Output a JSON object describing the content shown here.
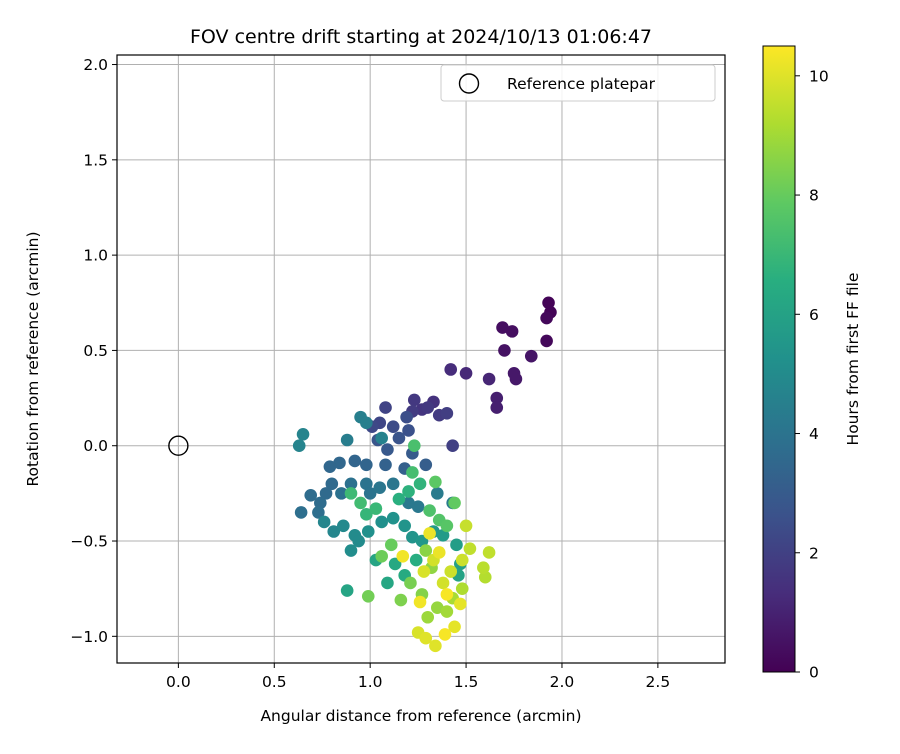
{
  "chart_data": {
    "type": "scatter",
    "title": "FOV centre drift starting at 2024/10/13 01:06:47",
    "xlabel": "Angular distance from reference (arcmin)",
    "ylabel": "Rotation from reference (arcmin)",
    "xlim": [
      -0.32,
      2.85
    ],
    "ylim": [
      -1.14,
      2.05
    ],
    "xticks": [
      0.0,
      0.5,
      1.0,
      1.5,
      2.0,
      2.5
    ],
    "xtick_labels": [
      "0.0",
      "0.5",
      "1.0",
      "1.5",
      "2.0",
      "2.5"
    ],
    "yticks": [
      -1.0,
      -0.5,
      0.0,
      0.5,
      1.0,
      1.5,
      2.0
    ],
    "ytick_labels": [
      "−1.0",
      "−0.5",
      "0.0",
      "0.5",
      "1.0",
      "1.5",
      "2.0"
    ],
    "grid": true,
    "legend": {
      "placement": "top-right",
      "entries": [
        "Reference platepar"
      ]
    },
    "reference_point": {
      "x": 0.0,
      "y": 0.0
    },
    "colorbar": {
      "label": "Hours from first FF file",
      "colormap": "viridis",
      "range": [
        0,
        10.5
      ],
      "ticks": [
        0,
        2,
        4,
        6,
        8,
        10
      ],
      "tick_labels": [
        "0",
        "2",
        "4",
        "6",
        "8",
        "10"
      ]
    },
    "points": [
      {
        "x": 1.93,
        "y": 0.75,
        "h": 0.1
      },
      {
        "x": 1.94,
        "y": 0.7,
        "h": 0.1
      },
      {
        "x": 1.92,
        "y": 0.67,
        "h": 0.2
      },
      {
        "x": 1.92,
        "y": 0.55,
        "h": 0.2
      },
      {
        "x": 1.69,
        "y": 0.62,
        "h": 0.4
      },
      {
        "x": 1.74,
        "y": 0.6,
        "h": 0.4
      },
      {
        "x": 1.7,
        "y": 0.5,
        "h": 0.5
      },
      {
        "x": 1.84,
        "y": 0.47,
        "h": 0.6
      },
      {
        "x": 1.75,
        "y": 0.38,
        "h": 0.7
      },
      {
        "x": 1.76,
        "y": 0.35,
        "h": 0.7
      },
      {
        "x": 1.66,
        "y": 0.25,
        "h": 0.9
      },
      {
        "x": 1.66,
        "y": 0.2,
        "h": 0.9
      },
      {
        "x": 1.62,
        "y": 0.35,
        "h": 1.1
      },
      {
        "x": 1.5,
        "y": 0.38,
        "h": 1.2
      },
      {
        "x": 1.42,
        "y": 0.4,
        "h": 1.3
      },
      {
        "x": 1.33,
        "y": 0.23,
        "h": 1.5
      },
      {
        "x": 1.27,
        "y": 0.19,
        "h": 1.6
      },
      {
        "x": 1.23,
        "y": 0.24,
        "h": 1.7
      },
      {
        "x": 1.3,
        "y": 0.2,
        "h": 1.7
      },
      {
        "x": 1.22,
        "y": 0.18,
        "h": 1.8
      },
      {
        "x": 1.36,
        "y": 0.16,
        "h": 1.8
      },
      {
        "x": 1.4,
        "y": 0.17,
        "h": 1.9
      },
      {
        "x": 1.43,
        "y": 0.0,
        "h": 2.0
      },
      {
        "x": 1.08,
        "y": 0.2,
        "h": 2.1
      },
      {
        "x": 1.05,
        "y": 0.12,
        "h": 2.2
      },
      {
        "x": 1.01,
        "y": 0.1,
        "h": 2.3
      },
      {
        "x": 1.12,
        "y": 0.1,
        "h": 2.4
      },
      {
        "x": 1.19,
        "y": 0.15,
        "h": 2.5
      },
      {
        "x": 1.2,
        "y": 0.08,
        "h": 2.6
      },
      {
        "x": 1.15,
        "y": 0.04,
        "h": 2.7
      },
      {
        "x": 1.04,
        "y": 0.03,
        "h": 2.8
      },
      {
        "x": 1.09,
        "y": -0.02,
        "h": 2.9
      },
      {
        "x": 1.22,
        "y": -0.04,
        "h": 3.0
      },
      {
        "x": 1.29,
        "y": -0.1,
        "h": 3.1
      },
      {
        "x": 1.18,
        "y": -0.12,
        "h": 3.2
      },
      {
        "x": 1.08,
        "y": -0.1,
        "h": 3.3
      },
      {
        "x": 0.98,
        "y": -0.1,
        "h": 3.4
      },
      {
        "x": 0.92,
        "y": -0.08,
        "h": 3.4
      },
      {
        "x": 0.84,
        "y": -0.09,
        "h": 3.5
      },
      {
        "x": 0.79,
        "y": -0.11,
        "h": 3.5
      },
      {
        "x": 0.8,
        "y": -0.2,
        "h": 3.6
      },
      {
        "x": 0.77,
        "y": -0.25,
        "h": 3.6
      },
      {
        "x": 0.74,
        "y": -0.3,
        "h": 3.7
      },
      {
        "x": 0.69,
        "y": -0.26,
        "h": 3.7
      },
      {
        "x": 0.73,
        "y": -0.35,
        "h": 3.8
      },
      {
        "x": 0.64,
        "y": -0.35,
        "h": 3.8
      },
      {
        "x": 0.85,
        "y": -0.25,
        "h": 3.9
      },
      {
        "x": 0.9,
        "y": -0.2,
        "h": 3.9
      },
      {
        "x": 0.98,
        "y": -0.2,
        "h": 4.0
      },
      {
        "x": 1.0,
        "y": -0.25,
        "h": 4.0
      },
      {
        "x": 1.05,
        "y": -0.22,
        "h": 4.1
      },
      {
        "x": 1.12,
        "y": -0.2,
        "h": 4.1
      },
      {
        "x": 1.2,
        "y": -0.3,
        "h": 4.2
      },
      {
        "x": 1.25,
        "y": -0.32,
        "h": 4.2
      },
      {
        "x": 1.35,
        "y": -0.25,
        "h": 4.3
      },
      {
        "x": 1.43,
        "y": -0.3,
        "h": 4.3
      },
      {
        "x": 0.88,
        "y": 0.03,
        "h": 4.4
      },
      {
        "x": 0.95,
        "y": 0.15,
        "h": 4.5
      },
      {
        "x": 0.98,
        "y": 0.12,
        "h": 4.5
      },
      {
        "x": 1.06,
        "y": 0.04,
        "h": 4.6
      },
      {
        "x": 0.65,
        "y": 0.06,
        "h": 4.7
      },
      {
        "x": 0.63,
        "y": 0.0,
        "h": 4.7
      },
      {
        "x": 0.76,
        "y": -0.4,
        "h": 4.8
      },
      {
        "x": 0.81,
        "y": -0.45,
        "h": 4.8
      },
      {
        "x": 0.86,
        "y": -0.42,
        "h": 4.9
      },
      {
        "x": 0.92,
        "y": -0.47,
        "h": 5.0
      },
      {
        "x": 0.94,
        "y": -0.5,
        "h": 5.0
      },
      {
        "x": 0.9,
        "y": -0.55,
        "h": 5.1
      },
      {
        "x": 0.99,
        "y": -0.45,
        "h": 5.2
      },
      {
        "x": 1.06,
        "y": -0.4,
        "h": 5.2
      },
      {
        "x": 1.12,
        "y": -0.38,
        "h": 5.3
      },
      {
        "x": 1.18,
        "y": -0.42,
        "h": 5.4
      },
      {
        "x": 1.22,
        "y": -0.48,
        "h": 5.4
      },
      {
        "x": 1.27,
        "y": -0.5,
        "h": 5.5
      },
      {
        "x": 1.33,
        "y": -0.45,
        "h": 5.6
      },
      {
        "x": 1.38,
        "y": -0.47,
        "h": 5.7
      },
      {
        "x": 1.45,
        "y": -0.52,
        "h": 5.8
      },
      {
        "x": 1.47,
        "y": -0.62,
        "h": 5.9
      },
      {
        "x": 1.46,
        "y": -0.68,
        "h": 6.0
      },
      {
        "x": 0.88,
        "y": -0.76,
        "h": 6.1
      },
      {
        "x": 1.03,
        "y": -0.6,
        "h": 6.1
      },
      {
        "x": 1.09,
        "y": -0.72,
        "h": 6.2
      },
      {
        "x": 1.13,
        "y": -0.62,
        "h": 6.3
      },
      {
        "x": 1.18,
        "y": -0.68,
        "h": 6.4
      },
      {
        "x": 1.24,
        "y": -0.6,
        "h": 6.5
      },
      {
        "x": 1.15,
        "y": -0.28,
        "h": 6.6
      },
      {
        "x": 1.2,
        "y": -0.24,
        "h": 6.7
      },
      {
        "x": 1.26,
        "y": -0.2,
        "h": 6.8
      },
      {
        "x": 0.98,
        "y": -0.36,
        "h": 6.9
      },
      {
        "x": 1.03,
        "y": -0.33,
        "h": 7.0
      },
      {
        "x": 0.9,
        "y": -0.25,
        "h": 7.1
      },
      {
        "x": 0.95,
        "y": -0.3,
        "h": 7.2
      },
      {
        "x": 1.22,
        "y": -0.14,
        "h": 7.3
      },
      {
        "x": 1.23,
        "y": 0.0,
        "h": 7.4
      },
      {
        "x": 1.31,
        "y": -0.34,
        "h": 7.5
      },
      {
        "x": 1.36,
        "y": -0.39,
        "h": 7.6
      },
      {
        "x": 1.4,
        "y": -0.42,
        "h": 7.7
      },
      {
        "x": 1.34,
        "y": -0.19,
        "h": 7.8
      },
      {
        "x": 1.44,
        "y": -0.3,
        "h": 7.9
      },
      {
        "x": 1.11,
        "y": -0.52,
        "h": 8.0
      },
      {
        "x": 1.06,
        "y": -0.58,
        "h": 8.1
      },
      {
        "x": 0.99,
        "y": -0.79,
        "h": 8.2
      },
      {
        "x": 1.21,
        "y": -0.72,
        "h": 8.3
      },
      {
        "x": 1.16,
        "y": -0.81,
        "h": 8.4
      },
      {
        "x": 1.27,
        "y": -0.78,
        "h": 8.5
      },
      {
        "x": 1.29,
        "y": -0.55,
        "h": 8.6
      },
      {
        "x": 1.32,
        "y": -0.64,
        "h": 8.7
      },
      {
        "x": 1.35,
        "y": -0.85,
        "h": 8.8
      },
      {
        "x": 1.3,
        "y": -0.9,
        "h": 8.9
      },
      {
        "x": 1.4,
        "y": -0.87,
        "h": 9.0
      },
      {
        "x": 1.43,
        "y": -0.8,
        "h": 9.1
      },
      {
        "x": 1.48,
        "y": -0.75,
        "h": 9.2
      },
      {
        "x": 1.6,
        "y": -0.69,
        "h": 9.3
      },
      {
        "x": 1.59,
        "y": -0.64,
        "h": 9.4
      },
      {
        "x": 1.62,
        "y": -0.56,
        "h": 9.5
      },
      {
        "x": 1.52,
        "y": -0.54,
        "h": 9.5
      },
      {
        "x": 1.5,
        "y": -0.42,
        "h": 9.6
      },
      {
        "x": 1.48,
        "y": -0.6,
        "h": 9.7
      },
      {
        "x": 1.42,
        "y": -0.66,
        "h": 9.7
      },
      {
        "x": 1.38,
        "y": -0.72,
        "h": 9.8
      },
      {
        "x": 1.33,
        "y": -0.6,
        "h": 9.8
      },
      {
        "x": 1.28,
        "y": -0.66,
        "h": 9.9
      },
      {
        "x": 1.25,
        "y": -0.98,
        "h": 9.9
      },
      {
        "x": 1.29,
        "y": -1.01,
        "h": 10.0
      },
      {
        "x": 1.34,
        "y": -1.05,
        "h": 10.0
      },
      {
        "x": 1.44,
        "y": -0.95,
        "h": 10.1
      },
      {
        "x": 1.47,
        "y": -0.83,
        "h": 10.1
      },
      {
        "x": 1.36,
        "y": -0.56,
        "h": 10.2
      },
      {
        "x": 1.31,
        "y": -0.46,
        "h": 10.2
      },
      {
        "x": 1.17,
        "y": -0.58,
        "h": 10.3
      },
      {
        "x": 1.26,
        "y": -0.82,
        "h": 10.3
      },
      {
        "x": 1.4,
        "y": -0.78,
        "h": 10.4
      },
      {
        "x": 1.39,
        "y": -0.99,
        "h": 10.4
      }
    ]
  }
}
